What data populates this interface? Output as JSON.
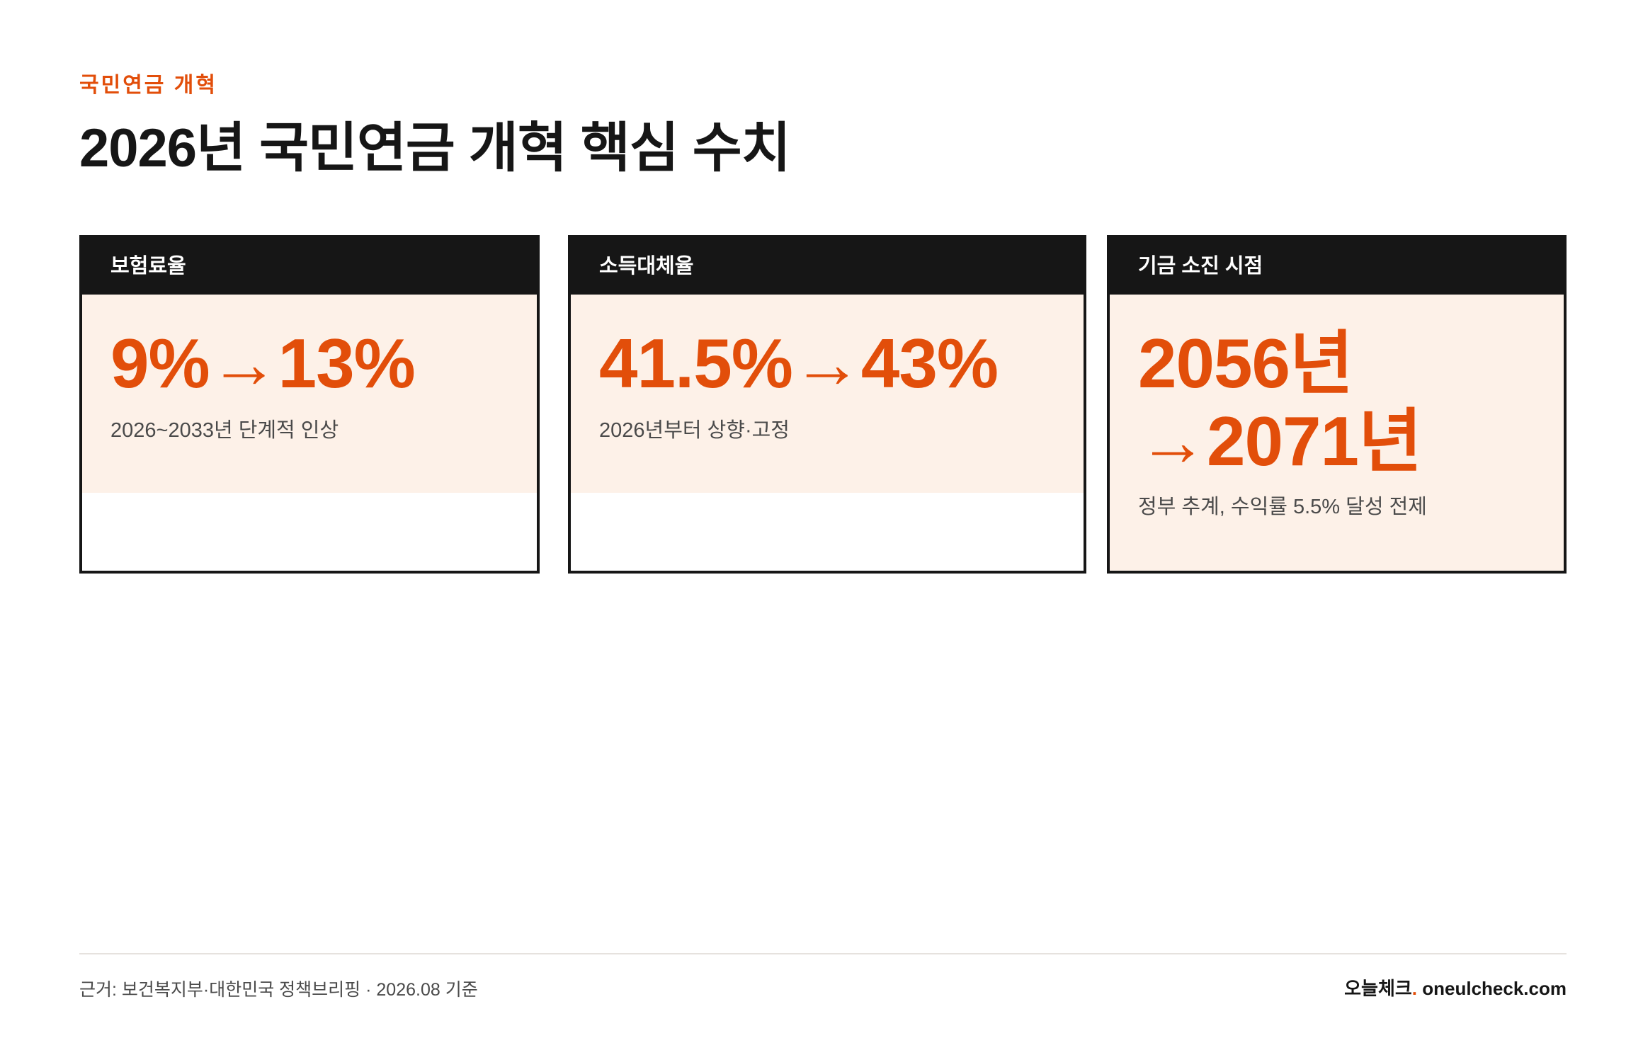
{
  "header": {
    "eyebrow": "국민연금 개혁",
    "title": "2026년 국민연금 개혁 핵심 수치"
  },
  "cards": [
    {
      "label": "보험료율",
      "value": "9%→13%",
      "note": "2026~2033년 단계적 인상"
    },
    {
      "label": "소득대체율",
      "value": "41.5%→43%",
      "note": "2026년부터 상향·고정"
    },
    {
      "label": "기금 소진 시점",
      "value_line1": "2056년",
      "value_line2": "→2071년",
      "note": "정부 추계, 수익률 5.5% 달성 전제"
    }
  ],
  "footer": {
    "source": "근거: 보건복지부·대한민국 정책브리핑 · 2026.08 기준",
    "brand_name": "오늘체크",
    "brand_dot": ".",
    "brand_url": " oneulcheck.com"
  },
  "colors": {
    "accent": "#e24e0a",
    "header_bar": "#161616",
    "card_fill": "#fdf1e8"
  }
}
